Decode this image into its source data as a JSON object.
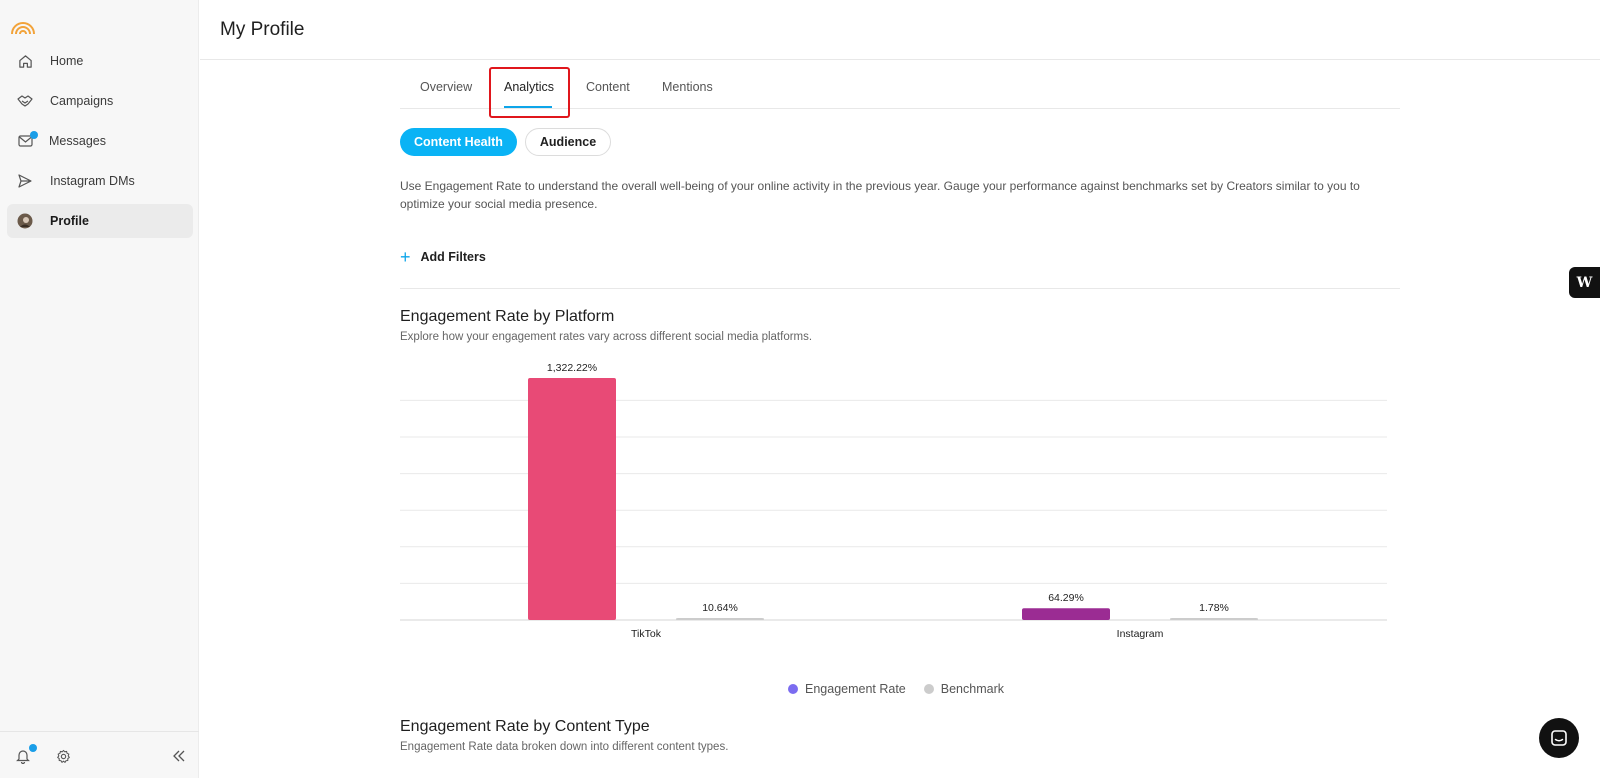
{
  "sidebar": {
    "items": [
      {
        "label": "Home",
        "icon": "home-icon"
      },
      {
        "label": "Campaigns",
        "icon": "handshake-icon"
      },
      {
        "label": "Messages",
        "icon": "mail-icon"
      },
      {
        "label": "Instagram DMs",
        "icon": "send-icon"
      },
      {
        "label": "Profile",
        "icon": "avatar-icon"
      }
    ],
    "active": "Profile",
    "footer_icons": [
      "bell-icon",
      "gear-icon",
      "collapse-icon"
    ]
  },
  "header": {
    "title": "My Profile"
  },
  "tabs": {
    "items": [
      "Overview",
      "Analytics",
      "Content",
      "Mentions"
    ],
    "active": "Analytics"
  },
  "pills": {
    "content_health": "Content Health",
    "audience": "Audience",
    "active": "Content Health"
  },
  "description": "Use Engagement Rate to understand the overall well-being of your online activity in the previous year. Gauge your performance against benchmarks set by Creators similar to you to optimize your social media presence.",
  "filters": {
    "label": "Add Filters"
  },
  "section1": {
    "title": "Engagement Rate by Platform",
    "subtitle": "Explore how your engagement rates vary across different social media platforms."
  },
  "section2": {
    "title": "Engagement Rate by Content Type",
    "subtitle": "Engagement Rate data broken down into different content types."
  },
  "colors": {
    "accent": "#0ab3f5",
    "tiktok_bar": "#e84a76",
    "instagram_bar": "#9b2c93",
    "benchmark": "#cccccc",
    "engagement_legend": "#7b6cf0"
  },
  "chart_data": {
    "type": "bar",
    "categories": [
      "TikTok",
      "Instagram"
    ],
    "series": [
      {
        "name": "Engagement Rate",
        "values": [
          1322.22,
          64.29
        ],
        "labels": [
          "1,322.22%",
          "64.29%"
        ]
      },
      {
        "name": "Benchmark",
        "values": [
          10.64,
          1.78
        ],
        "labels": [
          "10.64%",
          "1.78%"
        ]
      }
    ],
    "ylim": [
      0,
      1322.22
    ],
    "grid": true,
    "legend": "bottom-center"
  }
}
